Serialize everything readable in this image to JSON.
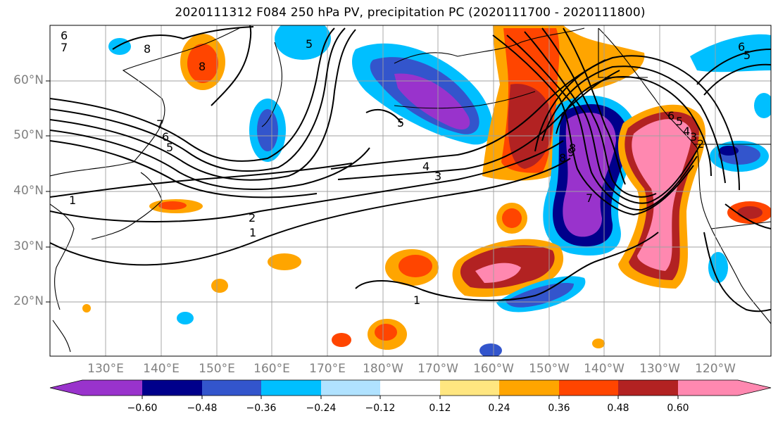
{
  "title": "2020111312 F084 250 hPa PV, precipitation PC (2020111700 - 2020111800)",
  "map": {
    "lat_labels": [
      "60°N",
      "50°N",
      "40°N",
      "30°N",
      "20°N"
    ],
    "lon_labels": [
      "130°E",
      "140°E",
      "150°E",
      "160°E",
      "170°E",
      "180°W",
      "170°W",
      "160°W",
      "150°W",
      "140°W",
      "130°W",
      "120°W"
    ],
    "contour_labels": [
      "6",
      "7",
      "8",
      "8",
      "5",
      "7",
      "6",
      "5",
      "5",
      "4",
      "3",
      "2",
      "1",
      "1",
      "1",
      "8",
      "9",
      "8",
      "7",
      "6",
      "5",
      "6",
      "5",
      "4",
      "3",
      "2"
    ]
  },
  "colorbar": {
    "tick_labels": [
      "−0.60",
      "−0.48",
      "−0.36",
      "−0.24",
      "−0.12",
      "0.12",
      "0.24",
      "0.36",
      "0.48",
      "0.60"
    ],
    "colors": [
      "#9933cc",
      "#00008b",
      "#3355cc",
      "#00bfff",
      "#b0e2ff",
      "#ffffff",
      "#ffe680",
      "#ffa500",
      "#ff4500",
      "#b22222",
      "#ff88b0"
    ]
  }
}
